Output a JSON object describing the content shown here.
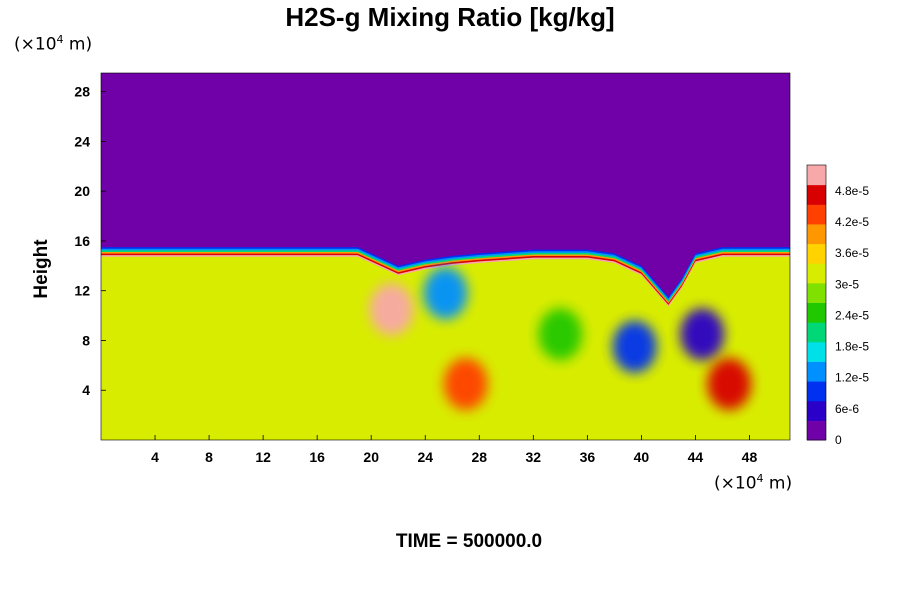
{
  "chart_data": {
    "type": "heatmap",
    "title": "H2S-g Mixing Ratio [kg/kg]",
    "ylabel": "Height",
    "xlabel": "",
    "x_unit": {
      "prefix": "(×10",
      "exp": "4",
      "suffix": " m)"
    },
    "y_unit": {
      "prefix": "(×10",
      "exp": "4",
      "suffix": " m)"
    },
    "x_ticks": [
      "4",
      "8",
      "12",
      "16",
      "20",
      "24",
      "28",
      "32",
      "36",
      "40",
      "44",
      "48"
    ],
    "y_ticks": [
      "4",
      "8",
      "12",
      "16",
      "20",
      "24",
      "28"
    ],
    "xlim": [
      0,
      51
    ],
    "ylim": [
      0,
      29.5
    ],
    "colorbar_ticks": [
      "0",
      "6e-6",
      "1.2e-5",
      "1.8e-5",
      "2.4e-5",
      "3e-5",
      "3.6e-5",
      "4.2e-5",
      "4.8e-5"
    ],
    "colorbar_range": [
      0,
      5.3e-05
    ],
    "colorbar_colors": [
      "#7000a8",
      "#2a00c8",
      "#0030f0",
      "#0090ff",
      "#00e0e8",
      "#00d878",
      "#20c800",
      "#80e000",
      "#d8ec00",
      "#ffd200",
      "#ff9800",
      "#ff4000",
      "#d80000",
      "#f8a8a8"
    ],
    "interface_height_x": [
      0,
      4,
      8,
      12,
      16,
      19,
      20,
      22,
      24,
      26,
      28,
      32,
      36,
      38,
      40,
      42,
      43,
      44,
      46,
      48,
      51
    ],
    "interface_height_y": [
      15.5,
      15.5,
      15.5,
      15.5,
      15.5,
      15.5,
      15.0,
      14.0,
      14.5,
      14.8,
      15.0,
      15.3,
      15.3,
      15.0,
      14.0,
      11.5,
      13.0,
      15.0,
      15.5,
      15.5,
      15.5
    ],
    "background_value": 3.3e-05,
    "features": [
      {
        "x": 21.5,
        "y": 10.5,
        "value": 5.2e-05
      },
      {
        "x": 25.5,
        "y": 11.8,
        "value": 1.2e-05
      },
      {
        "x": 39.5,
        "y": 7.5,
        "value": 8e-06
      },
      {
        "x": 44.5,
        "y": 8.5,
        "value": 6e-06
      },
      {
        "x": 46.5,
        "y": 4.5,
        "value": 4.8e-05
      },
      {
        "x": 27,
        "y": 4.5,
        "value": 4.2e-05
      },
      {
        "x": 34,
        "y": 8.5,
        "value": 2.4e-05
      }
    ],
    "time_label": "TIME = 500000.0"
  }
}
